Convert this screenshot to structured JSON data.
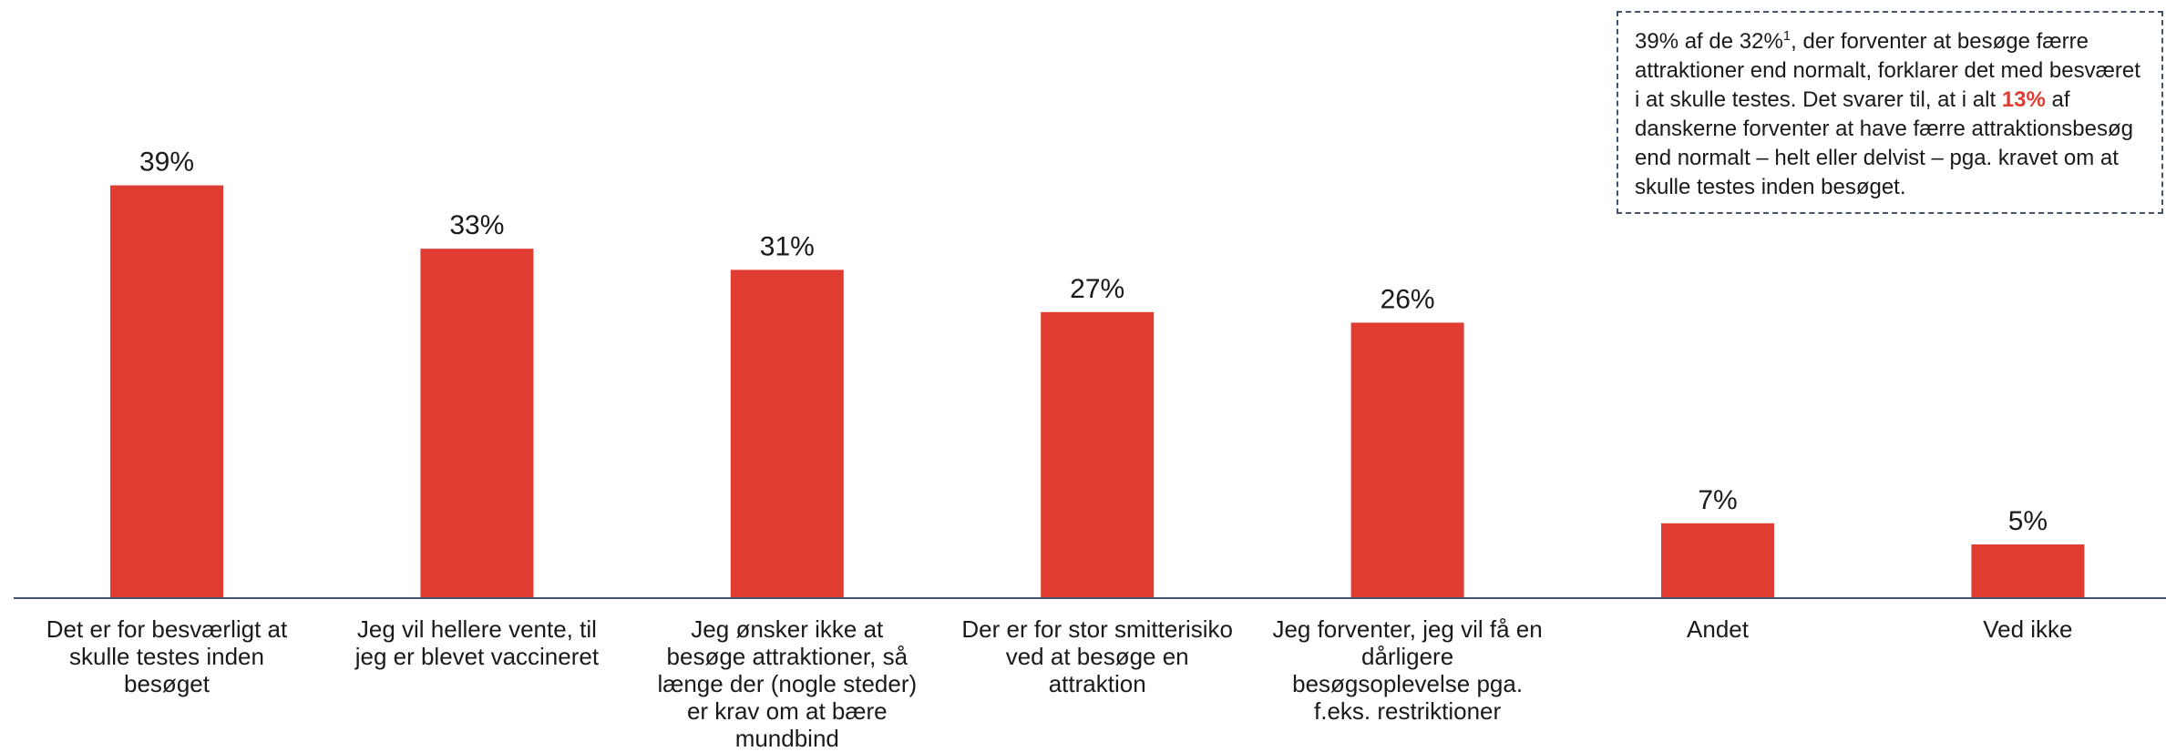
{
  "chart_data": {
    "type": "bar",
    "categories": [
      "Det er for besværligt at skulle testes inden besøget",
      "Jeg vil hellere vente, til jeg er blevet vaccineret",
      "Jeg ønsker ikke at besøge attraktioner, så længe der (nogle steder) er krav om at bære mundbind",
      "Der er for stor smitterisiko ved at besøge en attraktion",
      "Jeg forventer, jeg vil få en dårligere besøgsoplevelse pga. f.eks. restriktioner",
      "Andet",
      "Ved ikke"
    ],
    "values": [
      39,
      33,
      31,
      27,
      26,
      7,
      5
    ],
    "value_labels": [
      "39%",
      "33%",
      "31%",
      "27%",
      "26%",
      "7%",
      "5%"
    ],
    "color": "#e03c31",
    "annotation": [
      "39% af de 32%",
      "1",
      ", der forventer at besøge færre attraktioner end normalt, forklarer det med besværet i at skulle testes. Det svarer til, at i alt ",
      "13%",
      " af danskerne forventer at have færre attraktionsbesøg end normalt – helt eller delvist – pga. kravet om at skulle testes inden besøget."
    ]
  }
}
